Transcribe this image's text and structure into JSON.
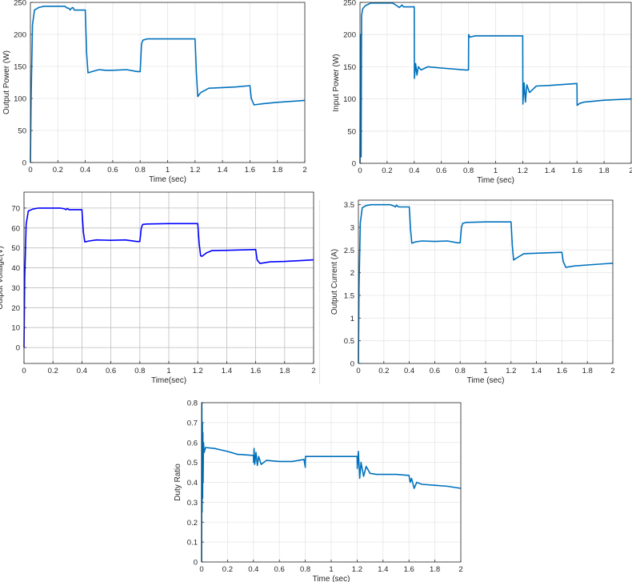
{
  "chart_data": [
    {
      "id": "output_power",
      "type": "line",
      "title": "",
      "xlabel": "Time (sec)",
      "ylabel": "Output Power (W)",
      "xlim": [
        0,
        2
      ],
      "ylim": [
        0,
        250
      ],
      "xticks": [
        "0",
        "0.2",
        "0.4",
        "0.6",
        "0.8",
        "1",
        "1.2",
        "1.4",
        "1.6",
        "1.8",
        "2"
      ],
      "yticks": [
        "0",
        "50",
        "100",
        "150",
        "200",
        "250"
      ],
      "grid": true,
      "color": "#0072BD",
      "x": [
        0,
        0.005,
        0.015,
        0.03,
        0.06,
        0.1,
        0.25,
        0.27,
        0.28,
        0.29,
        0.3,
        0.31,
        0.32,
        0.4,
        0.41,
        0.42,
        0.45,
        0.5,
        0.55,
        0.6,
        0.7,
        0.78,
        0.8,
        0.81,
        0.82,
        0.85,
        1.0,
        1.2,
        1.21,
        1.22,
        1.24,
        1.3,
        1.4,
        1.5,
        1.6,
        1.61,
        1.63,
        1.7,
        1.8,
        2.0
      ],
      "values": [
        0,
        100,
        215,
        238,
        242,
        244,
        244,
        241,
        241,
        238,
        241,
        242,
        238,
        238,
        170,
        140,
        142,
        145,
        144,
        144,
        145,
        142,
        142,
        185,
        191,
        193,
        193,
        193,
        140,
        103,
        109,
        116,
        117,
        118,
        120,
        100,
        90,
        92,
        94,
        97
      ]
    },
    {
      "id": "input_power",
      "type": "line",
      "title": "",
      "xlabel": "Time (sec)",
      "ylabel": "Input Power (W)",
      "xlim": [
        0,
        2
      ],
      "ylim": [
        0,
        250
      ],
      "xticks": [
        "0",
        "0.2",
        "0.4",
        "0.6",
        "0.8",
        "1",
        "1.2",
        "1.4",
        "1.6",
        "1.8",
        "2"
      ],
      "yticks": [
        "0",
        "50",
        "100",
        "150",
        "200",
        "250"
      ],
      "grid": true,
      "color": "#0072BD",
      "x": [
        0,
        0.004,
        0.008,
        0.012,
        0.02,
        0.04,
        0.08,
        0.24,
        0.27,
        0.29,
        0.31,
        0.32,
        0.4,
        0.401,
        0.41,
        0.42,
        0.43,
        0.45,
        0.5,
        0.6,
        0.78,
        0.8,
        0.801,
        0.81,
        0.85,
        1.0,
        1.2,
        1.201,
        1.21,
        1.22,
        1.23,
        1.25,
        1.3,
        1.4,
        1.6,
        1.601,
        1.62,
        1.65,
        1.8,
        2.0
      ],
      "values": [
        0,
        200,
        10,
        230,
        240,
        245,
        249,
        249,
        245,
        242,
        246,
        243,
        243,
        132,
        155,
        137,
        150,
        145,
        150,
        148,
        145,
        145,
        200,
        196,
        198,
        198,
        198,
        92,
        125,
        95,
        122,
        110,
        120,
        121,
        124,
        90,
        93,
        95,
        98,
        100
      ]
    },
    {
      "id": "output_voltage",
      "type": "line",
      "title": "",
      "xlabel": "Time(sec)",
      "ylabel": "Output Voltage(V)",
      "xlim": [
        0,
        2
      ],
      "ylim": [
        -8,
        78
      ],
      "xticks": [
        "0",
        "0.2",
        "0.4",
        "0.6",
        "0.8",
        "1",
        "1.2",
        "1.4",
        "1.6",
        "1.8",
        "2"
      ],
      "yticks": [
        "0",
        "10",
        "20",
        "30",
        "40",
        "50",
        "60",
        "70"
      ],
      "grid": true,
      "color": "#0000FF",
      "x": [
        0,
        0.005,
        0.015,
        0.03,
        0.06,
        0.1,
        0.25,
        0.28,
        0.29,
        0.3,
        0.31,
        0.32,
        0.4,
        0.41,
        0.42,
        0.45,
        0.5,
        0.6,
        0.7,
        0.78,
        0.8,
        0.81,
        0.82,
        0.85,
        1.0,
        1.2,
        1.21,
        1.22,
        1.23,
        1.26,
        1.3,
        1.4,
        1.6,
        1.61,
        1.63,
        1.7,
        1.8,
        2.0
      ],
      "values": [
        0,
        35,
        62,
        68.5,
        69.5,
        70,
        70,
        69.6,
        69.2,
        69.8,
        69.2,
        69.2,
        69.2,
        58,
        53,
        53.5,
        54,
        53.8,
        54,
        53.2,
        53.2,
        60,
        61.8,
        62,
        62.2,
        62.2,
        52,
        46,
        45.8,
        47.5,
        48.7,
        48.8,
        49.2,
        44,
        42.2,
        43,
        43.2,
        44
      ]
    },
    {
      "id": "output_current",
      "type": "line",
      "title": "",
      "xlabel": "Time (sec)",
      "ylabel": "Output Current (A)",
      "xlim": [
        0,
        2
      ],
      "ylim": [
        0,
        3.6
      ],
      "xticks": [
        "0",
        "0.2",
        "0.4",
        "0.6",
        "0.8",
        "1",
        "1.2",
        "1.4",
        "1.6",
        "1.8",
        "2"
      ],
      "yticks": [
        "0",
        "0.5",
        "1",
        "1.5",
        "2",
        "2.5",
        "3",
        "3.5"
      ],
      "grid": true,
      "color": "#0072BD",
      "x": [
        0,
        0.005,
        0.015,
        0.03,
        0.06,
        0.1,
        0.25,
        0.28,
        0.29,
        0.3,
        0.31,
        0.32,
        0.4,
        0.41,
        0.42,
        0.45,
        0.5,
        0.6,
        0.7,
        0.78,
        0.8,
        0.81,
        0.82,
        0.85,
        1.0,
        1.2,
        1.21,
        1.22,
        1.23,
        1.26,
        1.3,
        1.4,
        1.6,
        1.61,
        1.63,
        1.7,
        1.8,
        2.0
      ],
      "values": [
        0,
        1.7,
        3.1,
        3.43,
        3.48,
        3.5,
        3.5,
        3.47,
        3.45,
        3.49,
        3.46,
        3.45,
        3.45,
        2.95,
        2.65,
        2.68,
        2.7,
        2.69,
        2.7,
        2.66,
        2.66,
        3.0,
        3.09,
        3.11,
        3.12,
        3.12,
        2.6,
        2.28,
        2.3,
        2.35,
        2.42,
        2.43,
        2.45,
        2.25,
        2.12,
        2.15,
        2.17,
        2.21
      ]
    },
    {
      "id": "duty_ratio",
      "type": "line",
      "title": "",
      "xlabel": "Time (sec)",
      "ylabel": "Duty Ratio",
      "xlim": [
        0,
        2
      ],
      "ylim": [
        0,
        0.8
      ],
      "xticks": [
        "0",
        "0.2",
        "0.4",
        "0.6",
        "0.8",
        "1",
        "1.2",
        "1.4",
        "1.6",
        "1.8",
        "2"
      ],
      "yticks": [
        "0",
        "0.1",
        "0.2",
        "0.3",
        "0.4",
        "0.5",
        "0.6",
        "0.7",
        "0.8"
      ],
      "grid": true,
      "color": "#0072BD",
      "x": [
        0,
        0.002,
        0.004,
        0.006,
        0.008,
        0.01,
        0.012,
        0.015,
        0.02,
        0.03,
        0.1,
        0.2,
        0.28,
        0.3,
        0.4,
        0.401,
        0.405,
        0.41,
        0.42,
        0.43,
        0.44,
        0.46,
        0.5,
        0.6,
        0.7,
        0.79,
        0.8,
        0.801,
        0.81,
        1.0,
        1.2,
        1.201,
        1.21,
        1.22,
        1.23,
        1.25,
        1.27,
        1.3,
        1.35,
        1.5,
        1.6,
        1.61,
        1.62,
        1.64,
        1.66,
        1.7,
        1.8,
        1.9,
        2.0
      ],
      "values": [
        0,
        0.8,
        0.25,
        0.7,
        0.32,
        0.65,
        0.4,
        0.6,
        0.55,
        0.575,
        0.57,
        0.555,
        0.54,
        0.54,
        0.535,
        0.5,
        0.57,
        0.49,
        0.55,
        0.485,
        0.53,
        0.49,
        0.51,
        0.505,
        0.505,
        0.515,
        0.475,
        0.53,
        0.53,
        0.53,
        0.53,
        0.47,
        0.555,
        0.42,
        0.5,
        0.43,
        0.48,
        0.445,
        0.44,
        0.44,
        0.435,
        0.4,
        0.42,
        0.37,
        0.4,
        0.39,
        0.385,
        0.38,
        0.37
      ]
    }
  ]
}
